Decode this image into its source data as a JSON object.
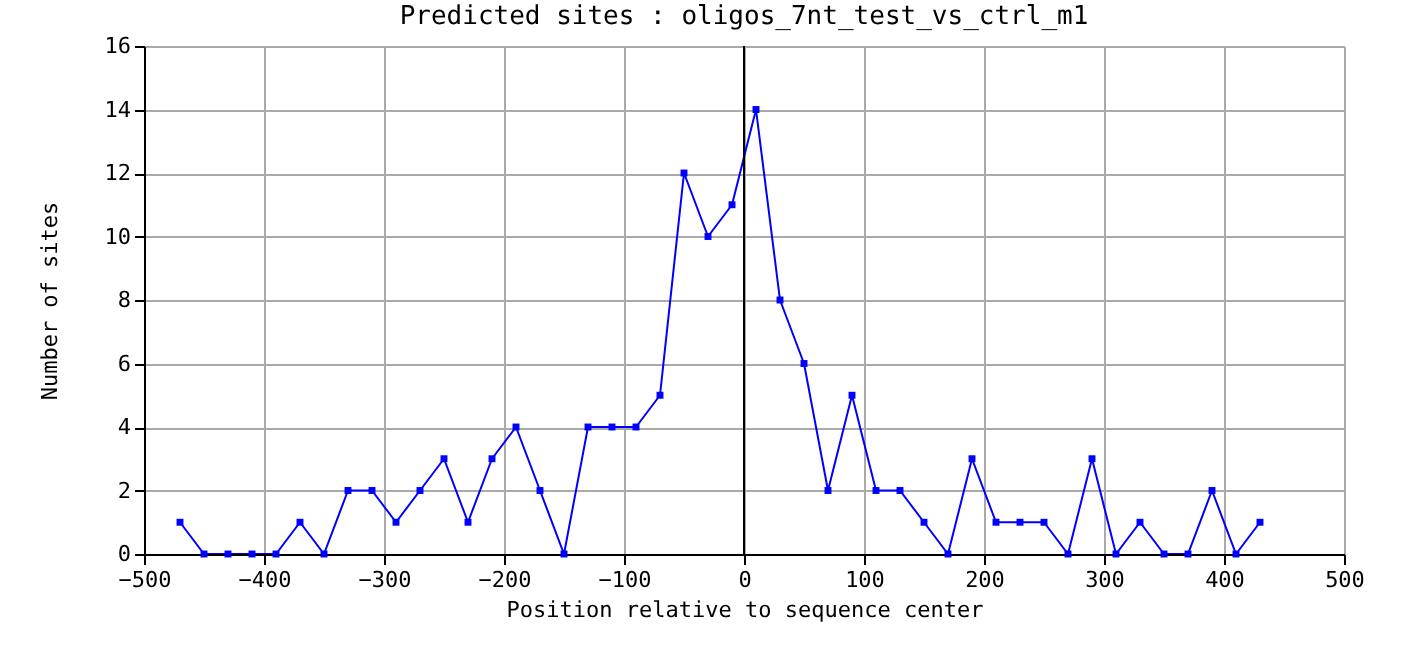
{
  "chart_data": {
    "type": "line",
    "title": "Predicted sites : oligos_7nt_test_vs_ctrl_m1",
    "xlabel": "Position relative to sequence center",
    "ylabel": "Number of sites",
    "x": [
      -470,
      -450,
      -430,
      -410,
      -390,
      -370,
      -350,
      -330,
      -310,
      -290,
      -270,
      -250,
      -230,
      -210,
      -190,
      -170,
      -150,
      -130,
      -110,
      -90,
      -70,
      -50,
      -30,
      -10,
      10,
      30,
      50,
      70,
      90,
      110,
      130,
      150,
      170,
      190,
      210,
      230,
      250,
      270,
      290,
      310,
      330,
      350,
      370,
      390,
      410,
      430
    ],
    "series": [
      {
        "color": "#0000ff",
        "values": [
          1,
          0,
          0,
          0,
          0,
          1,
          0,
          2,
          2,
          1,
          2,
          3,
          1,
          3,
          4,
          2,
          0,
          4,
          4,
          4,
          5,
          12,
          10,
          11,
          14,
          8,
          6,
          2,
          5,
          2,
          2,
          1,
          0,
          3,
          1,
          1,
          1,
          0,
          3,
          0,
          1,
          0,
          0,
          2,
          0,
          1
        ]
      }
    ],
    "xlim": [
      -500,
      500
    ],
    "xticks": [
      -500,
      -400,
      -300,
      -200,
      -100,
      0,
      100,
      200,
      300,
      400,
      500
    ],
    "ylim": [
      0,
      16
    ],
    "yticks": [
      0,
      2,
      4,
      6,
      8,
      10,
      12,
      14,
      16
    ],
    "ref_lines": [
      {
        "axis": "x",
        "value": 0,
        "color": "#000000"
      }
    ],
    "grid": true,
    "marker": "square",
    "line_style": "solid"
  }
}
